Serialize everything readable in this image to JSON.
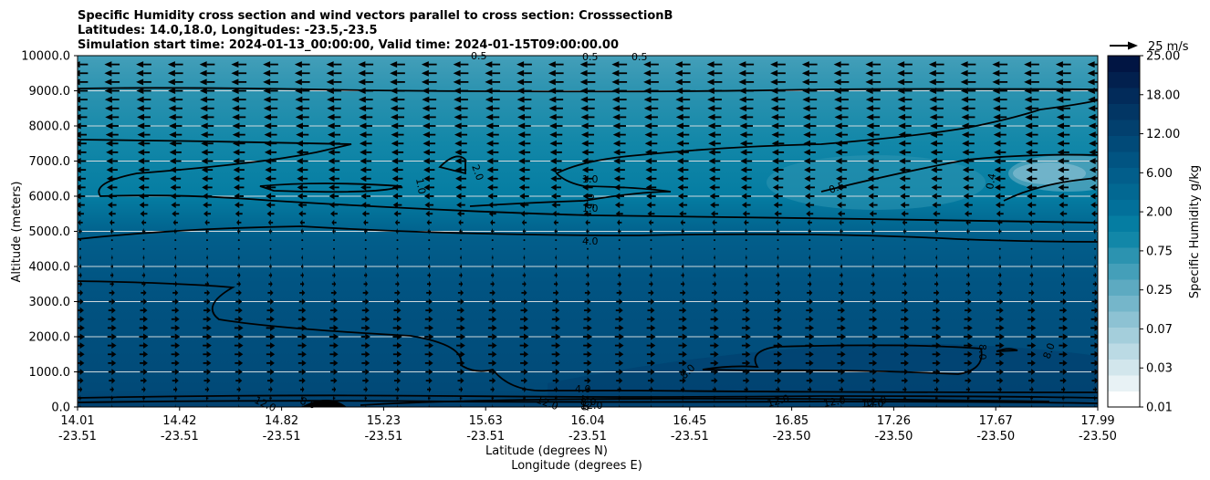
{
  "chart_data": {
    "type": "heatmap",
    "title_lines": [
      "Specific Humidity cross section and wind vectors parallel to cross section: CrosssectionB",
      "Latitudes: 14.0,18.0, Longitudes: -23.5,-23.5",
      "Simulation start time: 2024-01-13_00:00:00, Valid time: 2024-01-15T09:00:00.00"
    ],
    "ylabel": "Altitude (meters)",
    "xlabel_lat": "Latitude (degrees N)",
    "xlabel_lon": "Longitude (degrees E)",
    "ylim": [
      0,
      10000
    ],
    "yticks": [
      "0.0",
      "1000.0",
      "2000.0",
      "3000.0",
      "4000.0",
      "5000.0",
      "6000.0",
      "7000.0",
      "8000.0",
      "9000.0",
      "10000.0"
    ],
    "xticks_lat": [
      "14.01",
      "14.42",
      "14.82",
      "15.23",
      "15.63",
      "16.04",
      "16.45",
      "16.85",
      "17.26",
      "17.67",
      "17.99"
    ],
    "xticks_lon": [
      "-23.51",
      "-23.51",
      "-23.51",
      "-23.51",
      "-23.51",
      "-23.51",
      "-23.51",
      "-23.50",
      "-23.50",
      "-23.50",
      "-23.50"
    ],
    "grid": "horizontal",
    "colorbar": {
      "label": "Specific Humidity g/kg",
      "ticks": [
        "0.01",
        "0.03",
        "0.07",
        "0.25",
        "0.75",
        "2.00",
        "6.00",
        "12.00",
        "18.00",
        "25.00"
      ],
      "colors": [
        "#ffffff",
        "#e8f2f5",
        "#d2e6ec",
        "#bbdae4",
        "#a4cedb",
        "#8dc2d3",
        "#75b6ca",
        "#5daac1",
        "#449fb9",
        "#2c93b0",
        "#1287a8",
        "#057da2",
        "#02709a",
        "#026892",
        "#025e8b",
        "#015482",
        "#014a78",
        "#02406e",
        "#023664",
        "#022b5a",
        "#02204e",
        "#011543"
      ]
    },
    "quiver_key": {
      "label": "25 m/s",
      "speed": 25
    },
    "wind_profile": {
      "altitudes": [
        0,
        250,
        500,
        750,
        1000,
        1250,
        1500,
        1750,
        2000,
        2250,
        2500,
        2750,
        3000,
        3250,
        3500,
        3750,
        4000,
        4250,
        4500,
        4750,
        5000,
        5250,
        5500,
        5750,
        6000,
        6250,
        6500,
        6750,
        7000,
        7250,
        7500,
        7750,
        8000,
        8250,
        8500,
        8750,
        9000,
        9250,
        9500,
        9750
      ],
      "u_ms": [
        -1.5,
        -3,
        5,
        8,
        9,
        10,
        10.5,
        11,
        11.5,
        11,
        10,
        9,
        8,
        7,
        5,
        4,
        3,
        2,
        0.5,
        -1,
        -4,
        -6,
        -9,
        -11,
        -12,
        -13,
        -13.5,
        -14,
        -14.5,
        -15,
        -15.5,
        -16,
        -16.5,
        -17,
        -17.5,
        -18,
        -18.5,
        -19,
        -19,
        -19
      ]
    },
    "contour_labels": [
      "0.5",
      "0.5",
      "0.5",
      "2.0",
      "1.0",
      "1.0",
      "0.5",
      "1.0",
      "4.0",
      "0.5",
      "0.4",
      "8.0",
      "8.0",
      "8.0",
      "4.0",
      "8.0",
      "8.0",
      "12.0",
      "12.0",
      "12.0",
      "12.0",
      "12.0",
      "12.0",
      "12.0",
      "4.0"
    ]
  }
}
